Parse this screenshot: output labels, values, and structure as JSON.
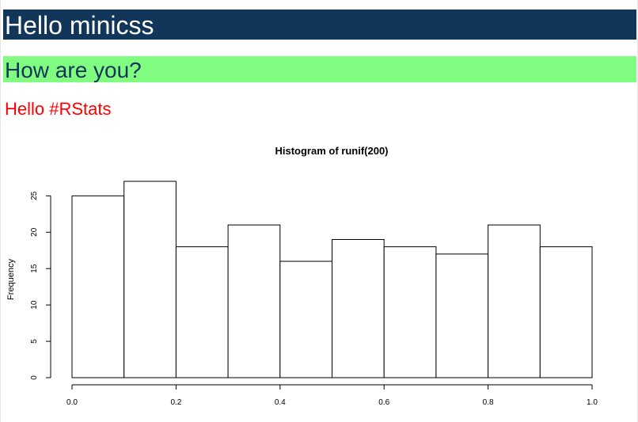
{
  "heading1": "Hello minicss",
  "heading2": "How are you?",
  "heading3": "Hello #RStats",
  "colors": {
    "heading1_bg": "#12365a",
    "heading1_text": "#ffffff",
    "heading2_bg": "#80fc80",
    "heading2_text": "#12365a",
    "heading3_text": "#ff0000"
  },
  "chart_data": {
    "type": "bar",
    "title": "Histogram of runif(200)",
    "xlabel": "",
    "ylabel": "Frequency",
    "bin_edges": [
      0.0,
      0.1,
      0.2,
      0.3,
      0.4,
      0.5,
      0.6,
      0.7,
      0.8,
      0.9,
      1.0
    ],
    "values": [
      25,
      27,
      18,
      21,
      16,
      19,
      18,
      17,
      21,
      18
    ],
    "xlim": [
      0,
      1
    ],
    "ylim": [
      0,
      27
    ],
    "x_ticks": [
      "0.0",
      "0.2",
      "0.4",
      "0.6",
      "0.8",
      "1.0"
    ],
    "y_ticks": [
      "0",
      "5",
      "10",
      "15",
      "20",
      "25"
    ],
    "grid": false,
    "legend": "none"
  }
}
